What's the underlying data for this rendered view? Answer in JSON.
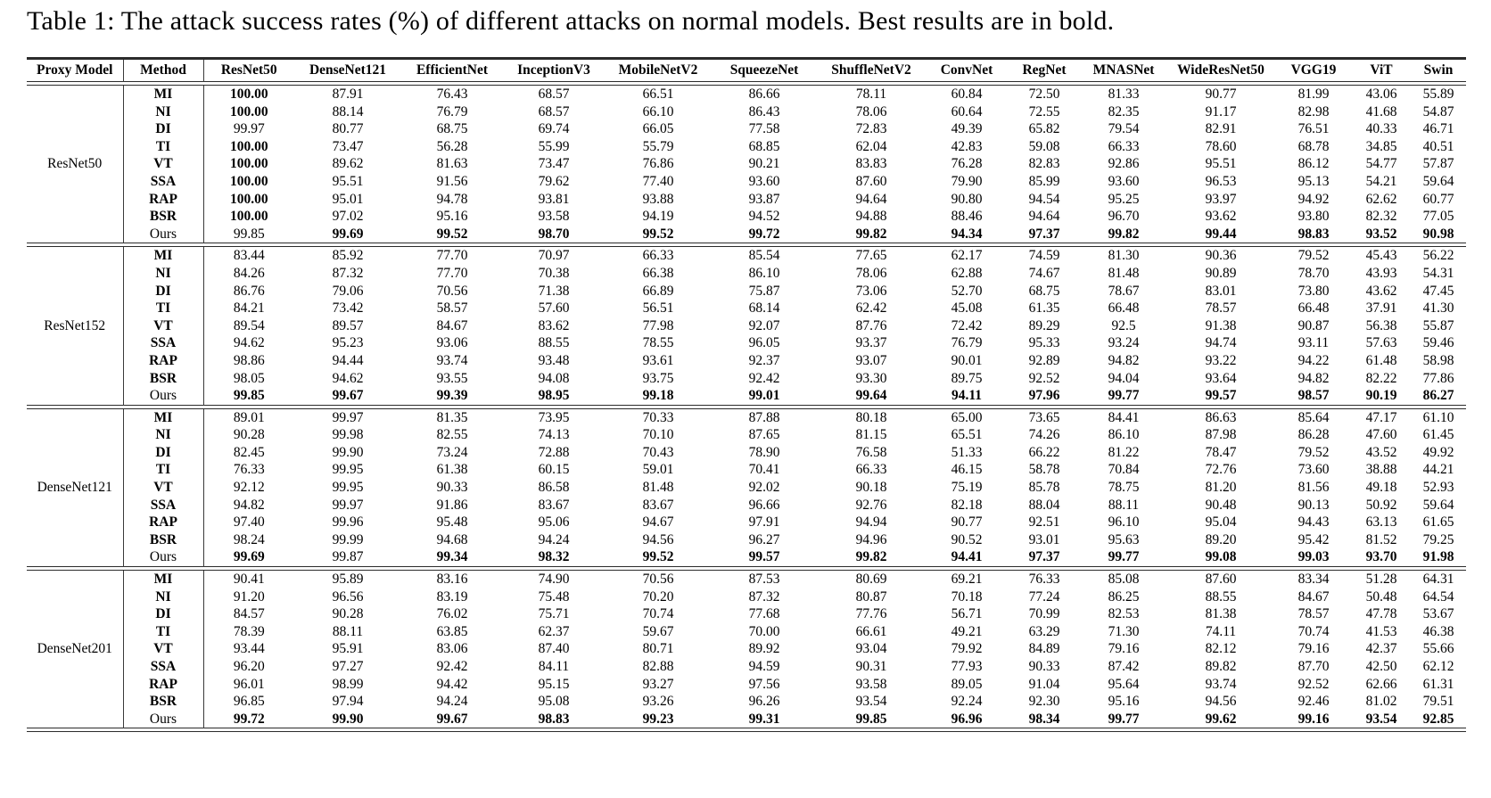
{
  "caption": "Table 1: The attack success rates (%) of different attacks on normal models. Best results are in bold.",
  "table": {
    "headers": [
      "Proxy Model",
      "Method",
      "ResNet50",
      "DenseNet121",
      "EfficientNet",
      "InceptionV3",
      "MobileNetV2",
      "SqueezeNet",
      "ShuffleNetV2",
      "ConvNet",
      "RegNet",
      "MNASNet",
      "WideResNet50",
      "VGG19",
      "ViT",
      "Swin"
    ],
    "blocks": [
      {
        "proxy_model": "ResNet50",
        "rows": [
          {
            "method": "MI",
            "values": [
              "100.00",
              "87.91",
              "76.43",
              "68.57",
              "66.51",
              "86.66",
              "78.11",
              "60.84",
              "72.50",
              "81.33",
              "90.77",
              "81.99",
              "43.06",
              "55.89"
            ],
            "bold": [
              0
            ]
          },
          {
            "method": "NI",
            "values": [
              "100.00",
              "88.14",
              "76.79",
              "68.57",
              "66.10",
              "86.43",
              "78.06",
              "60.64",
              "72.55",
              "82.35",
              "91.17",
              "82.98",
              "41.68",
              "54.87"
            ],
            "bold": [
              0
            ]
          },
          {
            "method": "DI",
            "values": [
              "99.97",
              "80.77",
              "68.75",
              "69.74",
              "66.05",
              "77.58",
              "72.83",
              "49.39",
              "65.82",
              "79.54",
              "82.91",
              "76.51",
              "40.33",
              "46.71"
            ],
            "bold": []
          },
          {
            "method": "TI",
            "values": [
              "100.00",
              "73.47",
              "56.28",
              "55.99",
              "55.79",
              "68.85",
              "62.04",
              "42.83",
              "59.08",
              "66.33",
              "78.60",
              "68.78",
              "34.85",
              "40.51"
            ],
            "bold": [
              0
            ]
          },
          {
            "method": "VT",
            "values": [
              "100.00",
              "89.62",
              "81.63",
              "73.47",
              "76.86",
              "90.21",
              "83.83",
              "76.28",
              "82.83",
              "92.86",
              "95.51",
              "86.12",
              "54.77",
              "57.87"
            ],
            "bold": [
              0
            ]
          },
          {
            "method": "SSA",
            "values": [
              "100.00",
              "95.51",
              "91.56",
              "79.62",
              "77.40",
              "93.60",
              "87.60",
              "79.90",
              "85.99",
              "93.60",
              "96.53",
              "95.13",
              "54.21",
              "59.64"
            ],
            "bold": [
              0
            ]
          },
          {
            "method": "RAP",
            "values": [
              "100.00",
              "95.01",
              "94.78",
              "93.81",
              "93.88",
              "93.87",
              "94.64",
              "90.80",
              "94.54",
              "95.25",
              "93.97",
              "94.92",
              "62.62",
              "60.77"
            ],
            "bold": [
              0
            ]
          },
          {
            "method": "BSR",
            "values": [
              "100.00",
              "97.02",
              "95.16",
              "93.58",
              "94.19",
              "94.52",
              "94.88",
              "88.46",
              "94.64",
              "96.70",
              "93.62",
              "93.80",
              "82.32",
              "77.05"
            ],
            "bold": [
              0
            ]
          },
          {
            "method": "Ours",
            "values": [
              "99.85",
              "99.69",
              "99.52",
              "98.70",
              "99.52",
              "99.72",
              "99.82",
              "94.34",
              "97.37",
              "99.82",
              "99.44",
              "98.83",
              "93.52",
              "90.98"
            ],
            "bold": [
              1,
              2,
              3,
              4,
              5,
              6,
              7,
              8,
              9,
              10,
              11,
              12,
              13
            ]
          }
        ]
      },
      {
        "proxy_model": "ResNet152",
        "rows": [
          {
            "method": "MI",
            "values": [
              "83.44",
              "85.92",
              "77.70",
              "70.97",
              "66.33",
              "85.54",
              "77.65",
              "62.17",
              "74.59",
              "81.30",
              "90.36",
              "79.52",
              "45.43",
              "56.22"
            ],
            "bold": []
          },
          {
            "method": "NI",
            "values": [
              "84.26",
              "87.32",
              "77.70",
              "70.38",
              "66.38",
              "86.10",
              "78.06",
              "62.88",
              "74.67",
              "81.48",
              "90.89",
              "78.70",
              "43.93",
              "54.31"
            ],
            "bold": []
          },
          {
            "method": "DI",
            "values": [
              "86.76",
              "79.06",
              "70.56",
              "71.38",
              "66.89",
              "75.87",
              "73.06",
              "52.70",
              "68.75",
              "78.67",
              "83.01",
              "73.80",
              "43.62",
              "47.45"
            ],
            "bold": []
          },
          {
            "method": "TI",
            "values": [
              "84.21",
              "73.42",
              "58.57",
              "57.60",
              "56.51",
              "68.14",
              "62.42",
              "45.08",
              "61.35",
              "66.48",
              "78.57",
              "66.48",
              "37.91",
              "41.30"
            ],
            "bold": []
          },
          {
            "method": "VT",
            "values": [
              "89.54",
              "89.57",
              "84.67",
              "83.62",
              "77.98",
              "92.07",
              "87.76",
              "72.42",
              "89.29",
              "92.5",
              "91.38",
              "90.87",
              "56.38",
              "55.87"
            ],
            "bold": []
          },
          {
            "method": "SSA",
            "values": [
              "94.62",
              "95.23",
              "93.06",
              "88.55",
              "78.55",
              "96.05",
              "93.37",
              "76.79",
              "95.33",
              "93.24",
              "94.74",
              "93.11",
              "57.63",
              "59.46"
            ],
            "bold": []
          },
          {
            "method": "RAP",
            "values": [
              "98.86",
              "94.44",
              "93.74",
              "93.48",
              "93.61",
              "92.37",
              "93.07",
              "90.01",
              "92.89",
              "94.82",
              "93.22",
              "94.22",
              "61.48",
              "58.98"
            ],
            "bold": []
          },
          {
            "method": "BSR",
            "values": [
              "98.05",
              "94.62",
              "93.55",
              "94.08",
              "93.75",
              "92.42",
              "93.30",
              "89.75",
              "92.52",
              "94.04",
              "93.64",
              "94.82",
              "82.22",
              "77.86"
            ],
            "bold": []
          },
          {
            "method": "Ours",
            "values": [
              "99.85",
              "99.67",
              "99.39",
              "98.95",
              "99.18",
              "99.01",
              "99.64",
              "94.11",
              "97.96",
              "99.77",
              "99.57",
              "98.57",
              "90.19",
              "86.27"
            ],
            "bold": [
              0,
              1,
              2,
              3,
              4,
              5,
              6,
              7,
              8,
              9,
              10,
              11,
              12,
              13
            ]
          }
        ]
      },
      {
        "proxy_model": "DenseNet121",
        "rows": [
          {
            "method": "MI",
            "values": [
              "89.01",
              "99.97",
              "81.35",
              "73.95",
              "70.33",
              "87.88",
              "80.18",
              "65.00",
              "73.65",
              "84.41",
              "86.63",
              "85.64",
              "47.17",
              "61.10"
            ],
            "bold": []
          },
          {
            "method": "NI",
            "values": [
              "90.28",
              "99.98",
              "82.55",
              "74.13",
              "70.10",
              "87.65",
              "81.15",
              "65.51",
              "74.26",
              "86.10",
              "87.98",
              "86.28",
              "47.60",
              "61.45"
            ],
            "bold": []
          },
          {
            "method": "DI",
            "values": [
              "82.45",
              "99.90",
              "73.24",
              "72.88",
              "70.43",
              "78.90",
              "76.58",
              "51.33",
              "66.22",
              "81.22",
              "78.47",
              "79.52",
              "43.52",
              "49.92"
            ],
            "bold": []
          },
          {
            "method": "TI",
            "values": [
              "76.33",
              "99.95",
              "61.38",
              "60.15",
              "59.01",
              "70.41",
              "66.33",
              "46.15",
              "58.78",
              "70.84",
              "72.76",
              "73.60",
              "38.88",
              "44.21"
            ],
            "bold": []
          },
          {
            "method": "VT",
            "values": [
              "92.12",
              "99.95",
              "90.33",
              "86.58",
              "81.48",
              "92.02",
              "90.18",
              "75.19",
              "85.78",
              "78.75",
              "81.20",
              "81.56",
              "49.18",
              "52.93"
            ],
            "bold": []
          },
          {
            "method": "SSA",
            "values": [
              "94.82",
              "99.97",
              "91.86",
              "83.67",
              "83.67",
              "96.66",
              "92.76",
              "82.18",
              "88.04",
              "88.11",
              "90.48",
              "90.13",
              "50.92",
              "59.64"
            ],
            "bold": []
          },
          {
            "method": "RAP",
            "values": [
              "97.40",
              "99.96",
              "95.48",
              "95.06",
              "94.67",
              "97.91",
              "94.94",
              "90.77",
              "92.51",
              "96.10",
              "95.04",
              "94.43",
              "63.13",
              "61.65"
            ],
            "bold": []
          },
          {
            "method": "BSR",
            "values": [
              "98.24",
              "99.99",
              "94.68",
              "94.24",
              "94.56",
              "96.27",
              "94.96",
              "90.52",
              "93.01",
              "95.63",
              "89.20",
              "95.42",
              "81.52",
              "79.25"
            ],
            "bold": []
          },
          {
            "method": "Ours",
            "values": [
              "99.69",
              "99.87",
              "99.34",
              "98.32",
              "99.52",
              "99.57",
              "99.82",
              "94.41",
              "97.37",
              "99.77",
              "99.08",
              "99.03",
              "93.70",
              "91.98"
            ],
            "bold": [
              0,
              2,
              3,
              4,
              5,
              6,
              7,
              8,
              9,
              10,
              11,
              12,
              13
            ]
          }
        ]
      },
      {
        "proxy_model": "DenseNet201",
        "rows": [
          {
            "method": "MI",
            "values": [
              "90.41",
              "95.89",
              "83.16",
              "74.90",
              "70.56",
              "87.53",
              "80.69",
              "69.21",
              "76.33",
              "85.08",
              "87.60",
              "83.34",
              "51.28",
              "64.31"
            ],
            "bold": []
          },
          {
            "method": "NI",
            "values": [
              "91.20",
              "96.56",
              "83.19",
              "75.48",
              "70.20",
              "87.32",
              "80.87",
              "70.18",
              "77.24",
              "86.25",
              "88.55",
              "84.67",
              "50.48",
              "64.54"
            ],
            "bold": []
          },
          {
            "method": "DI",
            "values": [
              "84.57",
              "90.28",
              "76.02",
              "75.71",
              "70.74",
              "77.68",
              "77.76",
              "56.71",
              "70.99",
              "82.53",
              "81.38",
              "78.57",
              "47.78",
              "53.67"
            ],
            "bold": []
          },
          {
            "method": "TI",
            "values": [
              "78.39",
              "88.11",
              "63.85",
              "62.37",
              "59.67",
              "70.00",
              "66.61",
              "49.21",
              "63.29",
              "71.30",
              "74.11",
              "70.74",
              "41.53",
              "46.38"
            ],
            "bold": []
          },
          {
            "method": "VT",
            "values": [
              "93.44",
              "95.91",
              "83.06",
              "87.40",
              "80.71",
              "89.92",
              "93.04",
              "79.92",
              "84.89",
              "79.16",
              "82.12",
              "79.16",
              "42.37",
              "55.66"
            ],
            "bold": []
          },
          {
            "method": "SSA",
            "values": [
              "96.20",
              "97.27",
              "92.42",
              "84.11",
              "82.88",
              "94.59",
              "90.31",
              "77.93",
              "90.33",
              "87.42",
              "89.82",
              "87.70",
              "42.50",
              "62.12"
            ],
            "bold": []
          },
          {
            "method": "RAP",
            "values": [
              "96.01",
              "98.99",
              "94.42",
              "95.15",
              "93.27",
              "97.56",
              "93.58",
              "89.05",
              "91.04",
              "95.64",
              "93.74",
              "92.52",
              "62.66",
              "61.31"
            ],
            "bold": []
          },
          {
            "method": "BSR",
            "values": [
              "96.85",
              "97.94",
              "94.24",
              "95.08",
              "93.26",
              "96.26",
              "93.54",
              "92.24",
              "92.30",
              "95.16",
              "94.56",
              "92.46",
              "81.02",
              "79.51"
            ],
            "bold": []
          },
          {
            "method": "Ours",
            "values": [
              "99.72",
              "99.90",
              "99.67",
              "98.83",
              "99.23",
              "99.31",
              "99.85",
              "96.96",
              "98.34",
              "99.77",
              "99.62",
              "99.16",
              "93.54",
              "92.85"
            ],
            "bold": [
              0,
              1,
              2,
              3,
              4,
              5,
              6,
              7,
              8,
              9,
              10,
              11,
              12,
              13
            ]
          }
        ]
      }
    ]
  }
}
